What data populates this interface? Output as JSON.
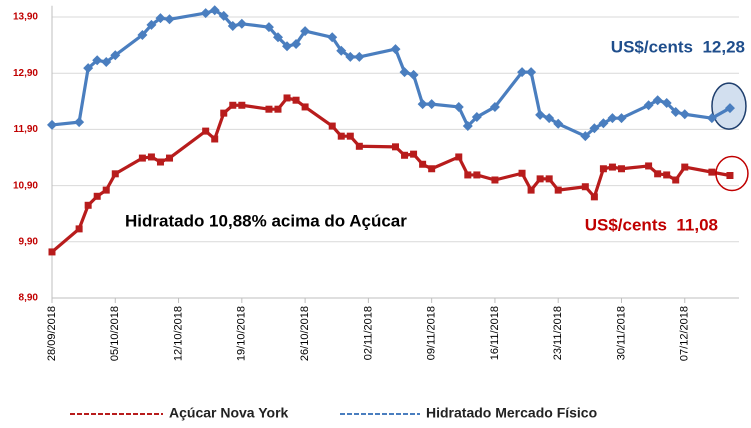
{
  "chart_data": {
    "type": "line",
    "x": [
      "28/09/2018",
      "01/10/2018",
      "02/10/2018",
      "03/10/2018",
      "04/10/2018",
      "05/10/2018",
      "08/10/2018",
      "09/10/2018",
      "10/10/2018",
      "11/10/2018",
      "15/10/2018",
      "16/10/2018",
      "17/10/2018",
      "18/10/2018",
      "19/10/2018",
      "22/10/2018",
      "23/10/2018",
      "24/10/2018",
      "25/10/2018",
      "26/10/2018",
      "29/10/2018",
      "30/10/2018",
      "31/10/2018",
      "01/11/2018",
      "05/11/2018",
      "06/11/2018",
      "07/11/2018",
      "08/11/2018",
      "09/11/2018",
      "12/11/2018",
      "13/11/2018",
      "14/11/2018",
      "16/11/2018",
      "19/11/2018",
      "20/11/2018",
      "21/11/2018",
      "22/11/2018",
      "23/11/2018",
      "26/11/2018",
      "27/11/2018",
      "28/11/2018",
      "29/11/2018",
      "30/11/2018",
      "03/12/2018",
      "04/12/2018",
      "05/12/2018",
      "06/12/2018",
      "07/12/2018",
      "10/12/2018",
      "12/12/2018"
    ],
    "series": [
      {
        "name": "Açúcar Nova York",
        "color": "#b81c1c",
        "marker": "square",
        "values": [
          9.72,
          10.13,
          10.55,
          10.71,
          10.82,
          11.11,
          11.39,
          11.41,
          11.32,
          11.39,
          11.87,
          11.73,
          12.19,
          12.33,
          12.33,
          12.26,
          12.26,
          12.46,
          12.42,
          12.3,
          11.96,
          11.78,
          11.78,
          11.6,
          11.59,
          11.44,
          11.46,
          11.28,
          11.2,
          11.41,
          11.09,
          11.09,
          11.0,
          11.12,
          10.82,
          11.02,
          11.02,
          10.82,
          10.88,
          10.7,
          11.2,
          11.23,
          11.2,
          11.25,
          11.11,
          11.09,
          11.0,
          11.23,
          11.14,
          11.08
        ]
      },
      {
        "name": "Hidratado Mercado Físico",
        "color": "#4a7ebf",
        "marker": "diamond",
        "values": [
          11.98,
          12.03,
          12.99,
          13.13,
          13.1,
          13.22,
          13.58,
          13.76,
          13.88,
          13.86,
          13.97,
          14.02,
          13.92,
          13.74,
          13.78,
          13.72,
          13.54,
          13.38,
          13.42,
          13.65,
          13.54,
          13.3,
          13.19,
          13.19,
          13.33,
          12.92,
          12.87,
          12.35,
          12.35,
          12.3,
          11.96,
          12.12,
          12.3,
          12.92,
          12.92,
          12.16,
          12.1,
          12.0,
          11.78,
          11.92,
          12.01,
          12.1,
          12.1,
          12.33,
          12.42,
          12.37,
          12.21,
          12.17,
          12.1,
          12.28
        ]
      }
    ],
    "annotations": [
      {
        "text": "Hidratado 10,88% acima do Açúcar",
        "color": "#000000"
      },
      {
        "text": "US$/cents  12,28",
        "color": "#1f4e8c"
      },
      {
        "text": "US$/cents  11,08",
        "color": "#c00000"
      }
    ],
    "xlim": [
      "28/09/2018",
      "13/12/2018"
    ],
    "xticks": [
      "28/09/2018",
      "05/10/2018",
      "12/10/2018",
      "19/10/2018",
      "26/10/2018",
      "02/11/2018",
      "09/11/2018",
      "16/11/2018",
      "23/11/2018",
      "30/11/2018",
      "07/12/2018"
    ],
    "ylim": [
      8.9,
      14.1
    ],
    "yticks": [
      {
        "value": 8.9,
        "label": "8,90"
      },
      {
        "value": 9.9,
        "label": "9,90"
      },
      {
        "value": 10.9,
        "label": "10,90"
      },
      {
        "value": 11.9,
        "label": "11,90"
      },
      {
        "value": 12.9,
        "label": "12,90"
      },
      {
        "value": 13.9,
        "label": "13,90"
      }
    ],
    "grid": true,
    "legend": "bottom"
  }
}
